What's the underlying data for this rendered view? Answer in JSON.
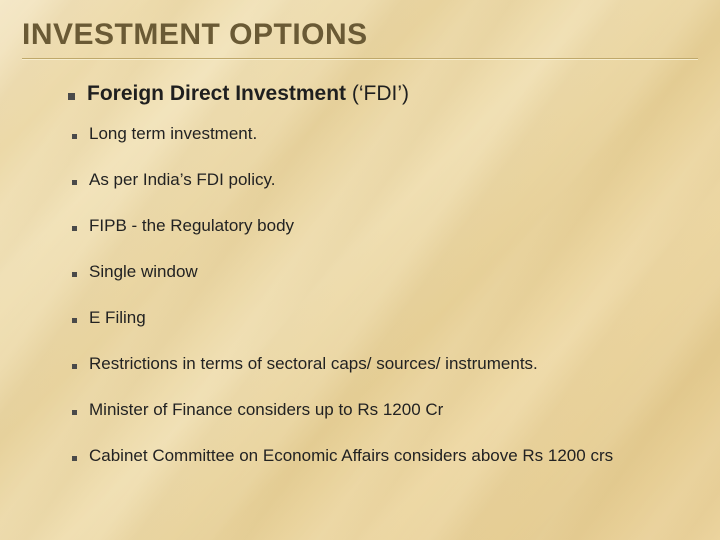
{
  "colors": {
    "title": "#6a5a35",
    "rule": "#bfa86a",
    "bullet": "#4a4a4a",
    "body_text": "#222222",
    "bg_gradient": [
      "#f5e8c8",
      "#ecd9a8",
      "#f2e3ba",
      "#e8d39e",
      "#f0dfb2",
      "#e6cf96",
      "#eed9a6",
      "#e4cb90",
      "#ecd49e"
    ]
  },
  "typography": {
    "title_fontsize": 30,
    "title_weight": 700,
    "main_fontsize": 21,
    "sub_fontsize": 17,
    "font_family": "Arial"
  },
  "title": "INVESTMENT OPTIONS",
  "main": {
    "bold": "Foreign Direct Investment",
    "rest": " (‘FDI’)"
  },
  "subs": [
    "Long term investment.",
    "As per India’s FDI policy.",
    "FIPB - the Regulatory body",
    "Single window",
    "E Filing",
    "Restrictions in terms of sectoral caps/ sources/ instruments.",
    "Minister of Finance considers up to Rs 1200 Cr",
    "Cabinet Committee on Economic Affairs considers above Rs 1200 crs"
  ]
}
